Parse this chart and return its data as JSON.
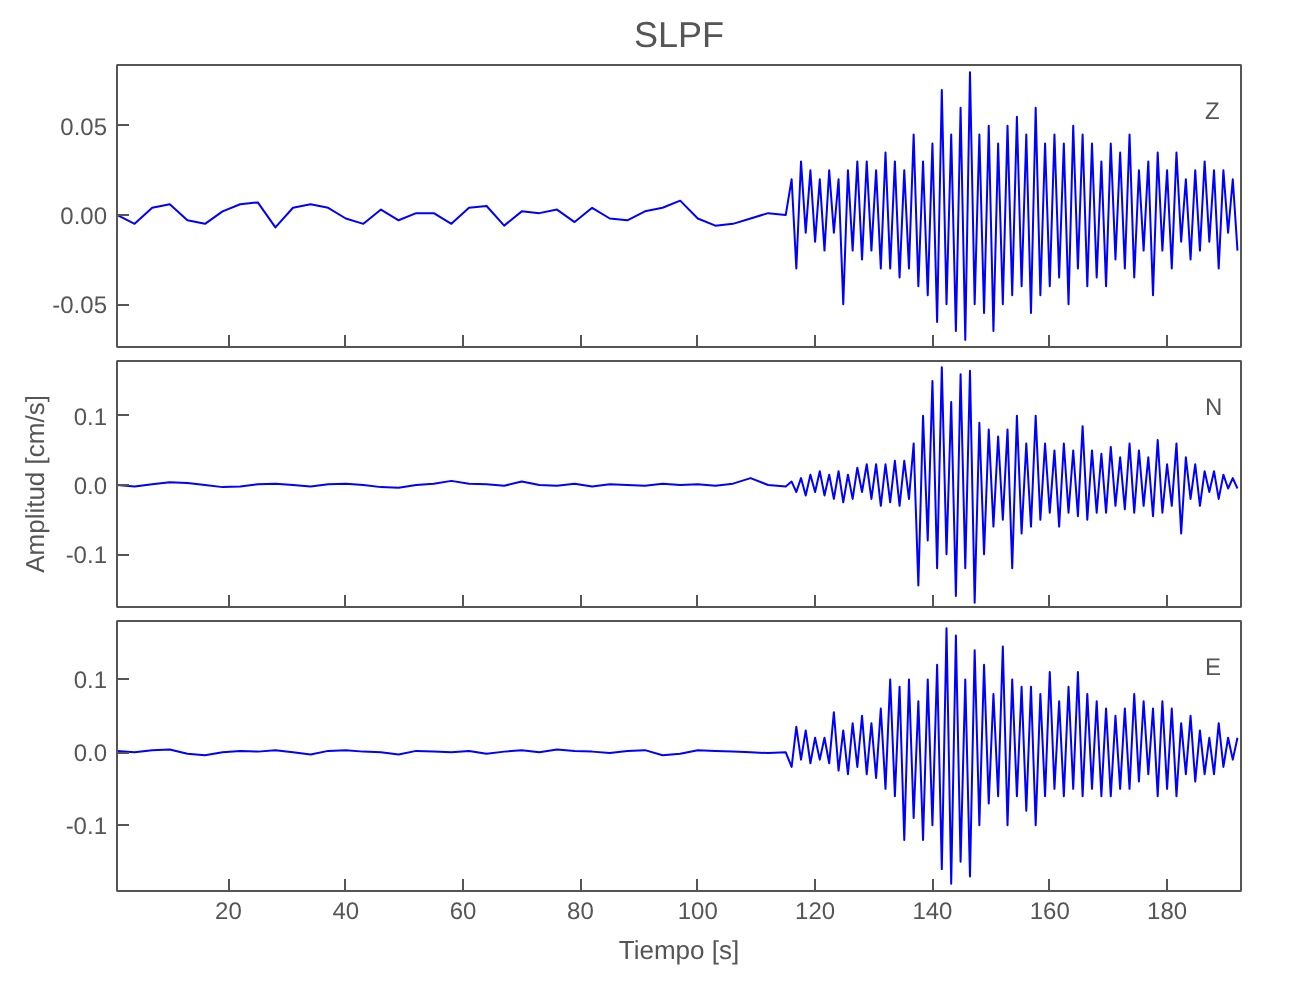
{
  "chart_data": [
    {
      "type": "line",
      "title": "SLPF",
      "annotations": [
        "Z"
      ],
      "tick_labels": "y",
      "grid": false,
      "xlim": [
        1,
        192.6
      ],
      "xticks": [
        20,
        40,
        60,
        80,
        100,
        120,
        140,
        160,
        180
      ],
      "ylim": [
        -0.074,
        0.084
      ],
      "yticks": [
        {
          "value": -0.05,
          "label": "-0.05"
        },
        {
          "value": 0,
          "label": "0.00"
        },
        {
          "value": 0.05,
          "label": "0.05"
        }
      ],
      "x": [
        1,
        4,
        7,
        10,
        13,
        16,
        19,
        22,
        25,
        28,
        31,
        34,
        37,
        40,
        43,
        46,
        49,
        52,
        55,
        58,
        61,
        64,
        67,
        70,
        73,
        76,
        79,
        82,
        85,
        88,
        91,
        94,
        97,
        100,
        103,
        106,
        109,
        112,
        115,
        116,
        116.8,
        117.6,
        118.4,
        119.2,
        120,
        120.8,
        121.6,
        122.4,
        123.2,
        124,
        124.8,
        125.6,
        126.4,
        127.2,
        128,
        128.8,
        129.6,
        130.4,
        131.2,
        132,
        132.8,
        133.6,
        134.4,
        135.2,
        136,
        136.8,
        137.6,
        138.4,
        139.2,
        140,
        140.8,
        141.6,
        142.4,
        143.2,
        144,
        144.8,
        145.6,
        146.4,
        147.2,
        148,
        148.8,
        149.6,
        150.4,
        151.2,
        152,
        152.8,
        153.6,
        154.4,
        155.2,
        156,
        156.8,
        157.6,
        158.4,
        159.2,
        160,
        160.8,
        161.6,
        162.4,
        163.2,
        164,
        164.8,
        165.6,
        166.4,
        167.2,
        168,
        168.8,
        169.6,
        170.4,
        171.2,
        172,
        172.8,
        173.6,
        174.4,
        175.2,
        176,
        176.8,
        177.6,
        178.4,
        179.2,
        180,
        180.8,
        181.6,
        182.4,
        183.2,
        184,
        184.8,
        185.6,
        186.4,
        187.2,
        188,
        188.8,
        189.6,
        190.4,
        191.2,
        192
      ],
      "series": [
        {
          "color": "#0000ff",
          "values": [
            0,
            -0.005,
            0.004,
            0.006,
            -0.003,
            -0.005,
            0.002,
            0.006,
            0.007,
            -0.007,
            0.004,
            0.006,
            0.004,
            -0.002,
            -0.005,
            0.003,
            -0.003,
            0.001,
            0.001,
            -0.005,
            0.004,
            0.005,
            -0.006,
            0.002,
            0.001,
            0.003,
            -0.004,
            0.004,
            -0.002,
            -0.003,
            0.002,
            0.004,
            0.008,
            -0.002,
            -0.006,
            -0.005,
            -0.002,
            0.001,
            0.0,
            0.02,
            -0.03,
            0.03,
            -0.01,
            0.025,
            -0.015,
            0.02,
            -0.02,
            0.025,
            -0.01,
            0.02,
            -0.05,
            0.025,
            -0.02,
            0.03,
            -0.025,
            0.03,
            -0.02,
            0.025,
            -0.03,
            0.035,
            -0.03,
            0.03,
            -0.035,
            0.025,
            -0.03,
            0.045,
            -0.04,
            0.03,
            -0.045,
            0.04,
            -0.06,
            0.07,
            -0.05,
            0.045,
            -0.065,
            0.06,
            -0.07,
            0.08,
            -0.05,
            0.045,
            -0.055,
            0.05,
            -0.065,
            0.04,
            -0.05,
            0.05,
            -0.045,
            0.055,
            -0.04,
            0.045,
            -0.055,
            0.06,
            -0.045,
            0.04,
            -0.04,
            0.045,
            -0.035,
            0.04,
            -0.05,
            0.05,
            -0.03,
            0.045,
            -0.04,
            0.04,
            -0.035,
            0.03,
            -0.04,
            0.04,
            -0.025,
            0.035,
            -0.03,
            0.045,
            -0.035,
            0.025,
            -0.02,
            0.03,
            -0.045,
            0.035,
            -0.02,
            0.025,
            -0.03,
            0.035,
            -0.015,
            0.02,
            -0.025,
            0.025,
            -0.02,
            0.03,
            -0.015,
            0.025,
            -0.03,
            0.025,
            -0.01,
            0.02,
            -0.02
          ]
        }
      ]
    },
    {
      "type": "line",
      "ylabel": "Amplitud [cm/s]",
      "annotations": [
        "N"
      ],
      "tick_labels": "y",
      "grid": false,
      "xlim": [
        1,
        192.6
      ],
      "xticks": [
        20,
        40,
        60,
        80,
        100,
        120,
        140,
        160,
        180
      ],
      "ylim": [
        -0.176,
        0.179
      ],
      "yticks": [
        {
          "value": -0.1,
          "label": "-0.1"
        },
        {
          "value": 0,
          "label": "0.0"
        },
        {
          "value": 0.1,
          "label": "0.1"
        }
      ],
      "x": [
        1,
        4,
        7,
        10,
        13,
        16,
        19,
        22,
        25,
        28,
        31,
        34,
        37,
        40,
        43,
        46,
        49,
        52,
        55,
        58,
        61,
        64,
        67,
        70,
        73,
        76,
        79,
        82,
        85,
        88,
        91,
        94,
        97,
        100,
        103,
        106,
        109,
        112,
        115,
        116,
        116.8,
        117.6,
        118.4,
        119.2,
        120,
        120.8,
        121.6,
        122.4,
        123.2,
        124,
        124.8,
        125.6,
        126.4,
        127.2,
        128,
        128.8,
        129.6,
        130.4,
        131.2,
        132,
        132.8,
        133.6,
        134.4,
        135.2,
        136,
        136.8,
        137.6,
        138.4,
        139.2,
        140,
        140.8,
        141.6,
        142.4,
        143.2,
        144,
        144.8,
        145.6,
        146.4,
        147.2,
        148,
        148.8,
        149.6,
        150.4,
        151.2,
        152,
        152.8,
        153.6,
        154.4,
        155.2,
        156,
        156.8,
        157.6,
        158.4,
        159.2,
        160,
        160.8,
        161.6,
        162.4,
        163.2,
        164,
        164.8,
        165.6,
        166.4,
        167.2,
        168,
        168.8,
        169.6,
        170.4,
        171.2,
        172,
        172.8,
        173.6,
        174.4,
        175.2,
        176,
        176.8,
        177.6,
        178.4,
        179.2,
        180,
        180.8,
        181.6,
        182.4,
        183.2,
        184,
        184.8,
        185.6,
        186.4,
        187.2,
        188,
        188.8,
        189.6,
        190.4,
        191.2,
        192
      ],
      "series": [
        {
          "color": "#0000ff",
          "values": [
            0,
            -0.002,
            0.001,
            0.004,
            0.003,
            0.0,
            -0.003,
            -0.002,
            0.001,
            0.002,
            0.0,
            -0.002,
            0.001,
            0.002,
            0.0,
            -0.003,
            -0.004,
            0.0,
            0.002,
            0.006,
            0.002,
            0.001,
            -0.001,
            0.005,
            0.0,
            -0.001,
            0.002,
            -0.002,
            0.001,
            0.0,
            -0.001,
            0.002,
            0.0,
            0.001,
            -0.001,
            0.002,
            0.01,
            0.0,
            -0.002,
            0.005,
            -0.01,
            0.01,
            -0.015,
            0.015,
            -0.01,
            0.02,
            -0.015,
            0.015,
            -0.02,
            0.02,
            -0.025,
            0.015,
            -0.02,
            0.025,
            -0.01,
            0.03,
            -0.02,
            0.03,
            -0.03,
            0.03,
            -0.025,
            0.035,
            -0.03,
            0.035,
            -0.02,
            0.06,
            -0.145,
            0.1,
            -0.08,
            0.15,
            -0.12,
            0.17,
            -0.1,
            0.12,
            -0.16,
            0.16,
            -0.12,
            0.165,
            -0.17,
            0.09,
            -0.1,
            0.08,
            -0.06,
            0.07,
            -0.05,
            0.08,
            -0.12,
            0.1,
            -0.07,
            0.06,
            -0.06,
            0.1,
            -0.05,
            0.06,
            -0.04,
            0.05,
            -0.06,
            0.06,
            -0.04,
            0.05,
            -0.045,
            0.085,
            -0.05,
            0.05,
            -0.04,
            0.045,
            -0.04,
            0.055,
            -0.03,
            0.04,
            -0.035,
            0.06,
            -0.04,
            0.05,
            -0.03,
            0.04,
            -0.045,
            0.065,
            -0.04,
            0.03,
            -0.03,
            0.06,
            -0.07,
            0.04,
            -0.02,
            0.03,
            -0.03,
            0.02,
            -0.01,
            0.02,
            -0.02,
            0.015,
            -0.005,
            0.01,
            -0.005
          ]
        }
      ]
    },
    {
      "type": "line",
      "xlabel": "Tiempo [s]",
      "annotations": [
        "E"
      ],
      "grid": false,
      "xlim": [
        1,
        192.6
      ],
      "xticks": [
        20,
        40,
        60,
        80,
        100,
        120,
        140,
        160,
        180
      ],
      "ylim": [
        -0.19,
        0.18
      ],
      "yticks": [
        {
          "value": -0.1,
          "label": "-0.1"
        },
        {
          "value": 0,
          "label": "0.0"
        },
        {
          "value": 0.1,
          "label": "0.1"
        }
      ],
      "x": [
        1,
        4,
        7,
        10,
        13,
        16,
        19,
        22,
        25,
        28,
        31,
        34,
        37,
        40,
        43,
        46,
        49,
        52,
        55,
        58,
        61,
        64,
        67,
        70,
        73,
        76,
        79,
        82,
        85,
        88,
        91,
        94,
        97,
        100,
        103,
        106,
        109,
        112,
        115,
        116,
        116.8,
        117.6,
        118.4,
        119.2,
        120,
        120.8,
        121.6,
        122.4,
        123.2,
        124,
        124.8,
        125.6,
        126.4,
        127.2,
        128,
        128.8,
        129.6,
        130.4,
        131.2,
        132,
        132.8,
        133.6,
        134.4,
        135.2,
        136,
        136.8,
        137.6,
        138.4,
        139.2,
        140,
        140.8,
        141.6,
        142.4,
        143.2,
        144,
        144.8,
        145.6,
        146.4,
        147.2,
        148,
        148.8,
        149.6,
        150.4,
        151.2,
        152,
        152.8,
        153.6,
        154.4,
        155.2,
        156,
        156.8,
        157.6,
        158.4,
        159.2,
        160,
        160.8,
        161.6,
        162.4,
        163.2,
        164,
        164.8,
        165.6,
        166.4,
        167.2,
        168,
        168.8,
        169.6,
        170.4,
        171.2,
        172,
        172.8,
        173.6,
        174.4,
        175.2,
        176,
        176.8,
        177.6,
        178.4,
        179.2,
        180,
        180.8,
        181.6,
        182.4,
        183.2,
        184,
        184.8,
        185.6,
        186.4,
        187.2,
        188,
        188.8,
        189.6,
        190.4,
        191.2,
        192
      ],
      "series": [
        {
          "color": "#0000ff",
          "values": [
            0.002,
            0.0,
            0.003,
            0.004,
            -0.002,
            -0.004,
            0.0,
            0.002,
            0.001,
            0.003,
            0.0,
            -0.003,
            0.002,
            0.003,
            0.001,
            0.0,
            -0.003,
            0.002,
            0.001,
            0.0,
            0.002,
            -0.002,
            0.001,
            0.003,
            0.0,
            0.004,
            0.002,
            0.001,
            -0.001,
            0.002,
            0.003,
            -0.004,
            -0.002,
            0.003,
            0.002,
            0.001,
            0.0,
            -0.001,
            0.0,
            -0.02,
            0.035,
            -0.01,
            0.03,
            -0.015,
            0.02,
            -0.01,
            0.02,
            -0.015,
            0.055,
            -0.025,
            0.03,
            -0.03,
            0.04,
            -0.02,
            0.05,
            -0.03,
            0.04,
            -0.035,
            0.06,
            -0.05,
            0.1,
            -0.06,
            0.09,
            -0.12,
            0.1,
            -0.09,
            0.07,
            -0.12,
            0.1,
            -0.1,
            0.12,
            -0.16,
            0.17,
            -0.18,
            0.16,
            -0.15,
            0.1,
            -0.17,
            0.14,
            -0.1,
            0.12,
            -0.07,
            0.08,
            -0.06,
            0.145,
            -0.1,
            0.1,
            -0.06,
            0.09,
            -0.08,
            0.09,
            -0.1,
            0.08,
            -0.06,
            0.11,
            -0.05,
            0.07,
            -0.06,
            0.09,
            -0.05,
            0.11,
            -0.06,
            0.08,
            -0.05,
            0.07,
            -0.06,
            0.06,
            -0.06,
            0.05,
            -0.05,
            0.06,
            -0.05,
            0.08,
            -0.04,
            0.07,
            -0.03,
            0.06,
            -0.06,
            0.07,
            -0.05,
            0.06,
            -0.06,
            0.04,
            -0.03,
            0.05,
            -0.04,
            0.03,
            -0.03,
            0.02,
            -0.03,
            0.04,
            -0.02,
            0.02,
            -0.01,
            0.02
          ]
        }
      ]
    }
  ]
}
